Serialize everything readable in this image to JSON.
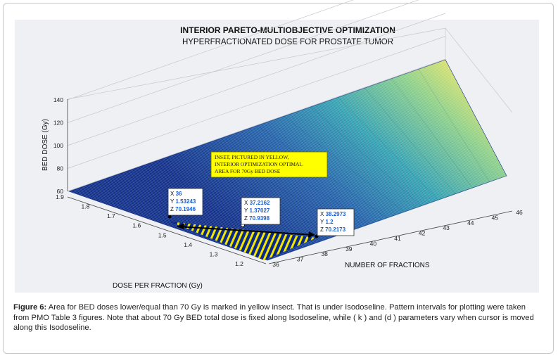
{
  "chart_data": {
    "type": "surface",
    "title": "INTERIOR PARETO-MULTIOBJECTIVE OPTIMIZATION",
    "subtitle": "HYPERFRACTIONATED DOSE FOR PROSTATE TUMOR",
    "xlabel": "NUMBER OF FRACTIONS",
    "ylabel": "DOSE PER FRACTION (Gy)",
    "zlabel": "BED DOSE (Gy)",
    "xlim": [
      36,
      46
    ],
    "ylim": [
      1.2,
      1.9
    ],
    "zlim": [
      60,
      140
    ],
    "x_ticks": [
      "36",
      "37",
      "38",
      "39",
      "40",
      "41",
      "42",
      "43",
      "44",
      "45",
      "46"
    ],
    "y_ticks": [
      "1.2",
      "1.3",
      "1.4",
      "1.5",
      "1.6",
      "1.7",
      "1.8",
      "1.9"
    ],
    "z_ticks": [
      "60",
      "80",
      "100",
      "120",
      "140"
    ],
    "isodoseline": [
      {
        "x": 36,
        "y": 1.53243,
        "z": 70.1946
      },
      {
        "x": 37.2162,
        "y": 1.37027,
        "z": 70.9398
      },
      {
        "x": 38.2973,
        "y": 1.2,
        "z": 70.2173
      }
    ],
    "datatips": [
      {
        "x_label": "X",
        "x_value": "36",
        "y_label": "Y",
        "y_value": "1.53243",
        "z_label": "Z",
        "z_value": "70.1946"
      },
      {
        "x_label": "X",
        "x_value": "37.2162",
        "y_label": "Y",
        "y_value": "1.37027",
        "z_label": "Z",
        "z_value": "70.9398"
      },
      {
        "x_label": "X",
        "x_value": "38.2973",
        "y_label": "Y",
        "y_value": "1.2",
        "z_label": "Z",
        "z_value": "70.2173"
      }
    ],
    "inset_note": [
      "INSET, PICTURED IN YELLOW,",
      "INTERIOR OPTIMIZATION OPTIMAL",
      "AREA FOR 70Gy BED DOSE"
    ],
    "colors": {
      "surface_low": "#0b2a86",
      "surface_mid": "#2f9fb0",
      "surface_high": "#d9e06a",
      "inset": "#f2e600",
      "note_bg": "#ffff00"
    },
    "grid": true
  },
  "caption": {
    "label": "Figure 6:",
    "text": " Area for BED doses lower/equal than 70 Gy is marked in yellow insect. That is under Isodoseline. Pattern intervals for plotting were taken from PMO Table 3 figures. Note that about 70 Gy BED total dose is fixed along Isodoseline, while ( k ) and (d ) parameters vary when cursor is moved along this Isodoseline."
  }
}
